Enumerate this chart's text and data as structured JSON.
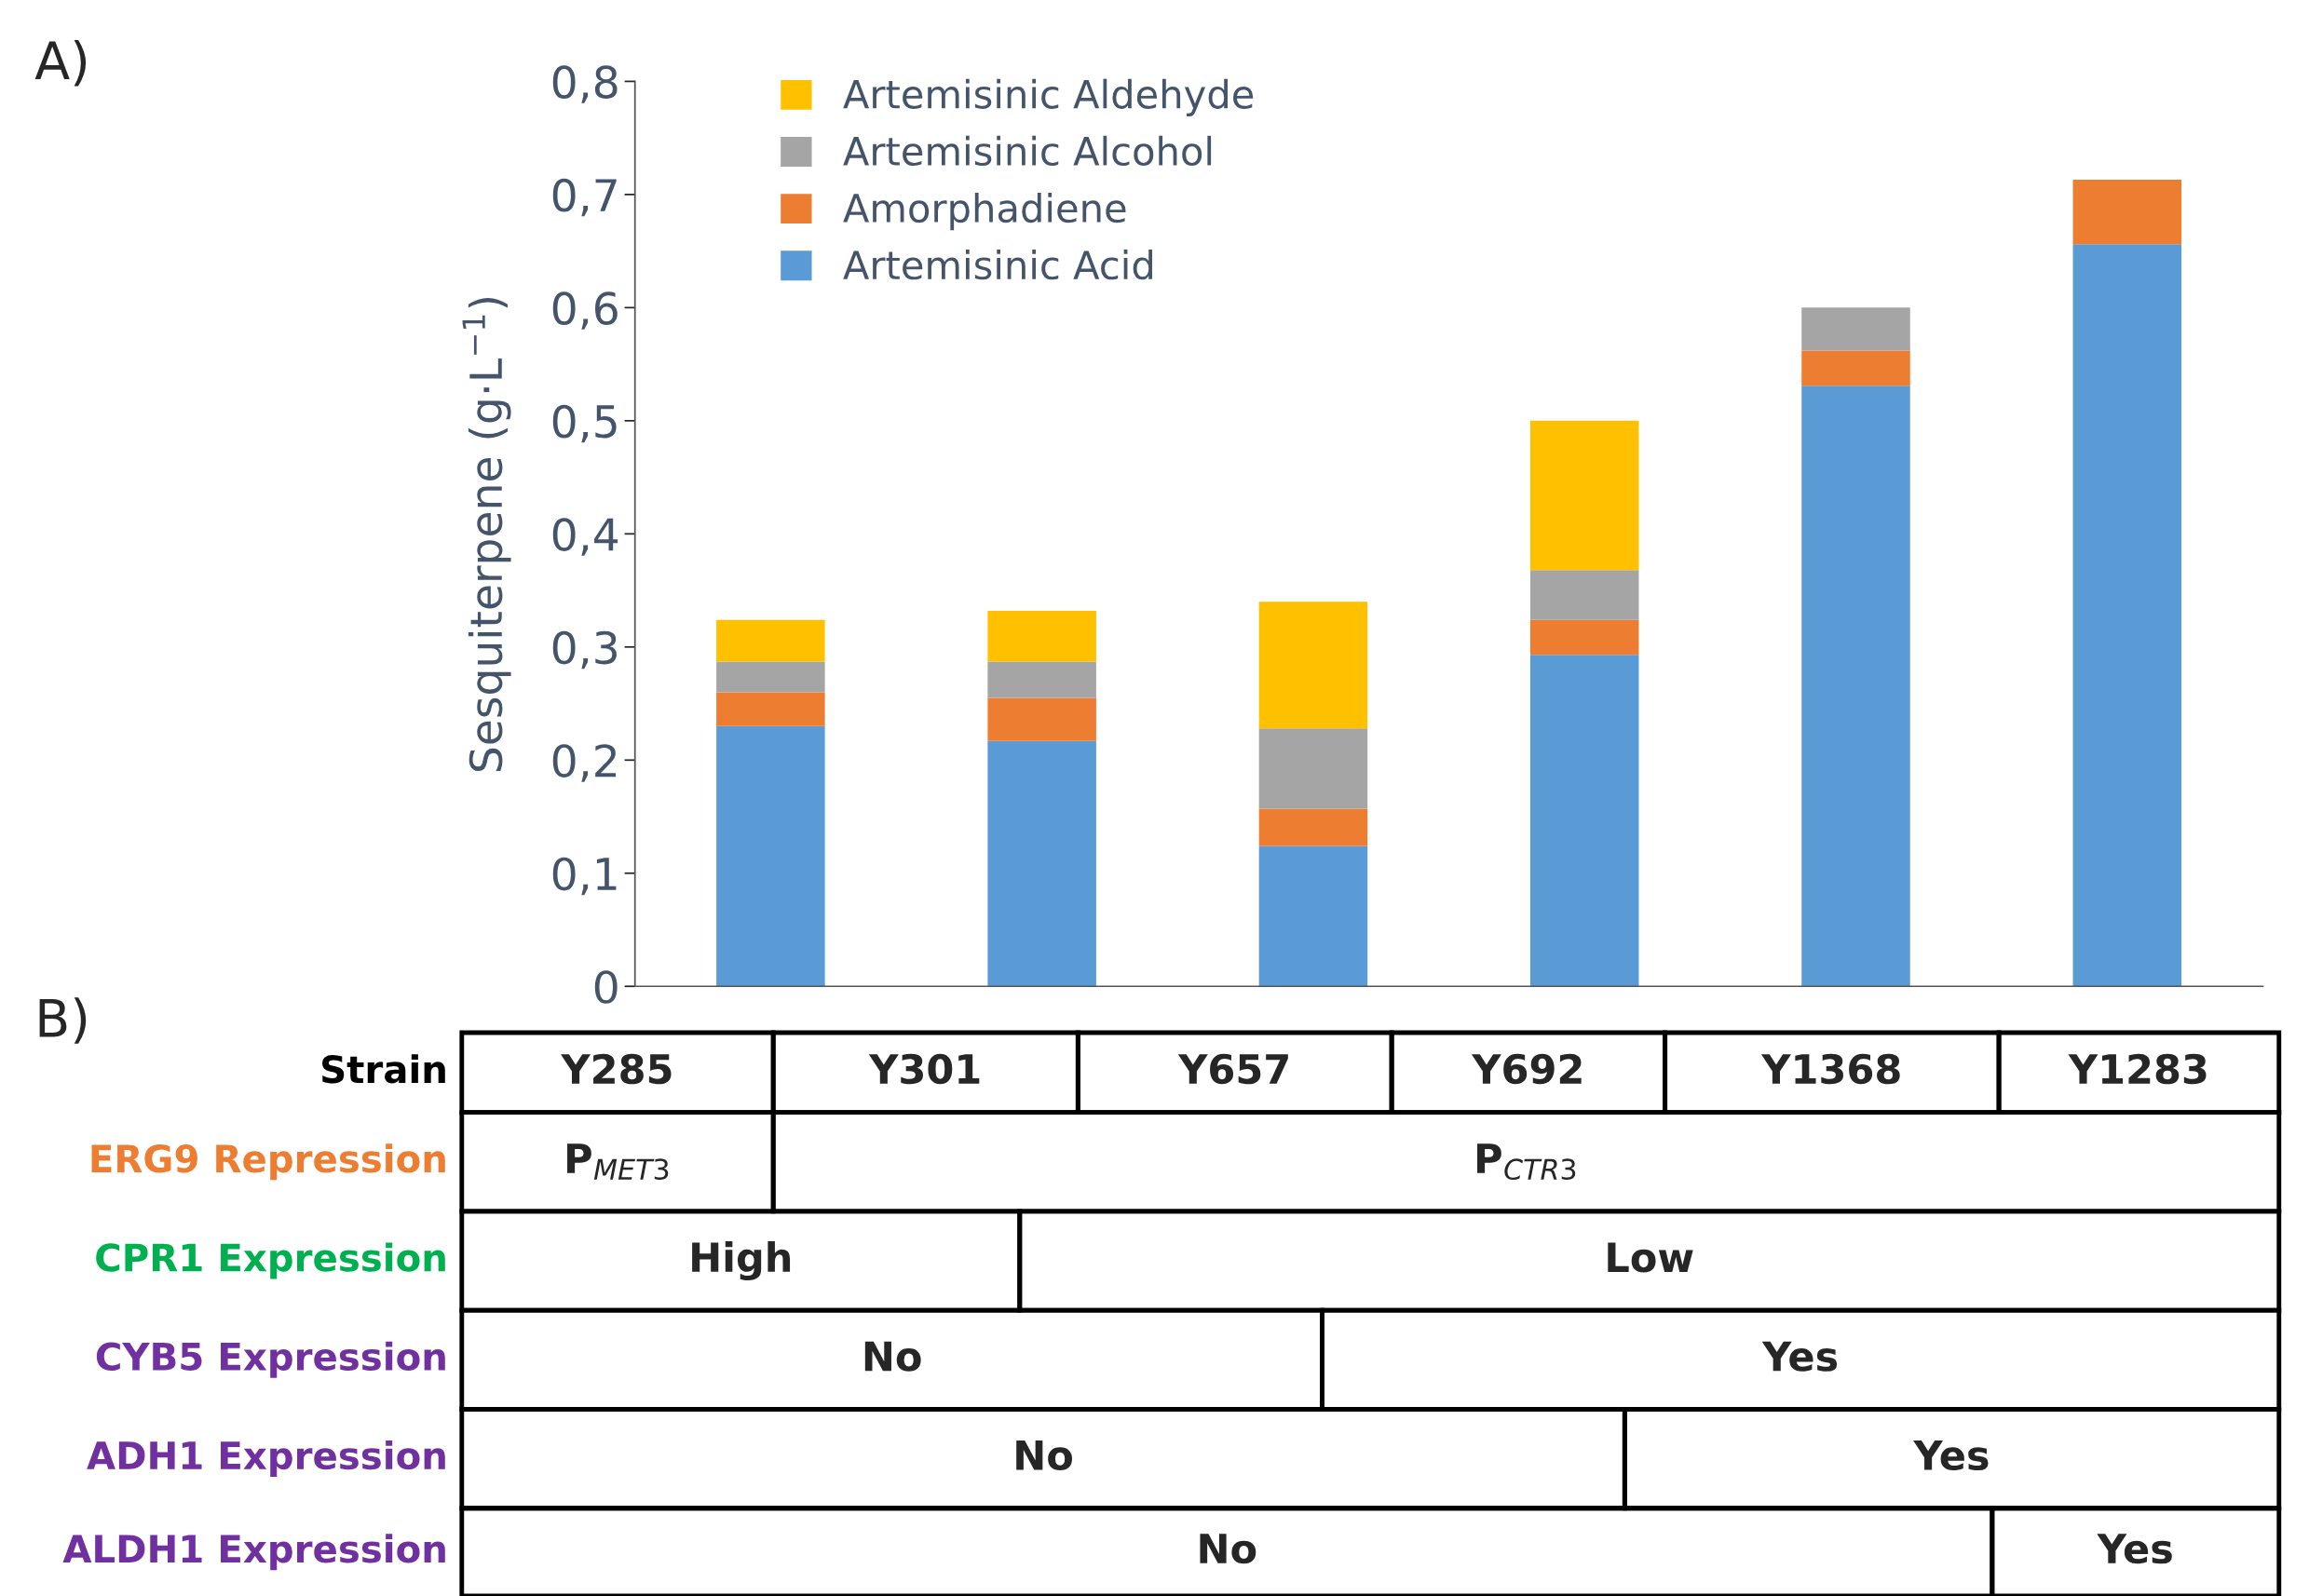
{
  "chart_data": [
    {
      "type": "bar",
      "stacked": true,
      "categories": [
        null,
        null,
        null,
        null,
        null,
        null
      ],
      "series": [
        {
          "name": "Artemisinic Acid",
          "color": "#5b9bd5",
          "values": [
            0.23,
            0.217,
            0.124,
            0.293,
            0.531,
            0.656
          ]
        },
        {
          "name": "Amorphadiene",
          "color": "#ed7d31",
          "values": [
            0.03,
            0.038,
            0.033,
            0.031,
            0.031,
            0.057
          ]
        },
        {
          "name": "Artemisinic Alcohol",
          "color": "#a5a5a5",
          "values": [
            0.027,
            0.032,
            0.071,
            0.044,
            0.038,
            null
          ]
        },
        {
          "name": "Artemisinic Aldehyde",
          "color": "#ffc000",
          "values": [
            0.037,
            0.045,
            0.112,
            0.132,
            null,
            null
          ]
        }
      ],
      "ylabel": "Sesquiterpene (g·L$^{−1}$)",
      "ylim": [
        0,
        0.8
      ],
      "yticks": [
        0,
        {
          "value": 0.1,
          "label": "0,1"
        },
        {
          "value": 0.2,
          "label": "0,2"
        },
        {
          "value": 0.3,
          "label": "0,3"
        },
        {
          "value": 0.4,
          "label": "0,4"
        },
        {
          "value": 0.5,
          "label": "0,5"
        },
        {
          "value": 0.6,
          "label": "0,6"
        },
        {
          "value": 0.7,
          "label": "0,7"
        },
        {
          "value": 0.8,
          "label": "0,8"
        }
      ],
      "tick_labels": "y",
      "grid": false,
      "legend": "top left",
      "annotations": [
        "A)"
      ]
    },
    {
      "type": "other",
      "annotations": [
        "B)",
        "Strain",
        "Y285",
        "Y301",
        "Y657",
        "Y692",
        "Y1368",
        "Y1283",
        "ERG9 Repression",
        "P$_{MET3}$",
        "P$_{CTR3}$",
        "CPR1 Expression",
        "High",
        "Low",
        "CYB5 Expression",
        "No",
        "Yes",
        "ADH1 Expression",
        "No",
        "Yes",
        "ALDH1 Expression",
        "No",
        "Yes"
      ]
    }
  ]
}
